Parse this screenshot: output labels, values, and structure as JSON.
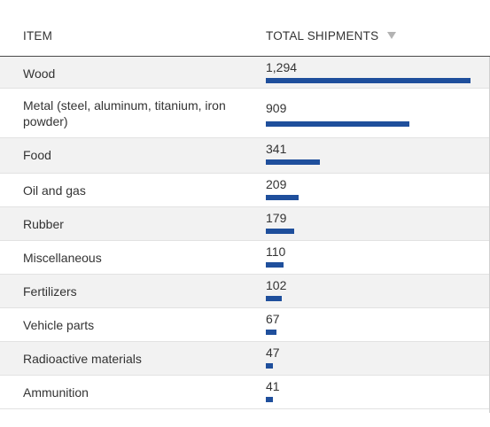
{
  "header": {
    "item_label": "ITEM",
    "total_label": "TOTAL SHIPMENTS",
    "sort_icon": "sort-descending-triangle"
  },
  "max_value": 1294,
  "rows": [
    {
      "item": "Wood",
      "value_label": "1,294",
      "value": 1294
    },
    {
      "item": "Metal (steel, aluminum, titanium, iron powder)",
      "value_label": "909",
      "value": 909
    },
    {
      "item": "Food",
      "value_label": "341",
      "value": 341
    },
    {
      "item": "Oil and gas",
      "value_label": "209",
      "value": 209
    },
    {
      "item": "Rubber",
      "value_label": "179",
      "value": 179
    },
    {
      "item": "Miscellaneous",
      "value_label": "110",
      "value": 110
    },
    {
      "item": "Fertilizers",
      "value_label": "102",
      "value": 102
    },
    {
      "item": "Vehicle parts",
      "value_label": "67",
      "value": 67
    },
    {
      "item": "Radioactive materials",
      "value_label": "47",
      "value": 47
    },
    {
      "item": "Ammunition",
      "value_label": "41",
      "value": 41
    }
  ],
  "colors": {
    "bar": "#1f4f9c",
    "stripe": "#f2f2f2"
  }
}
